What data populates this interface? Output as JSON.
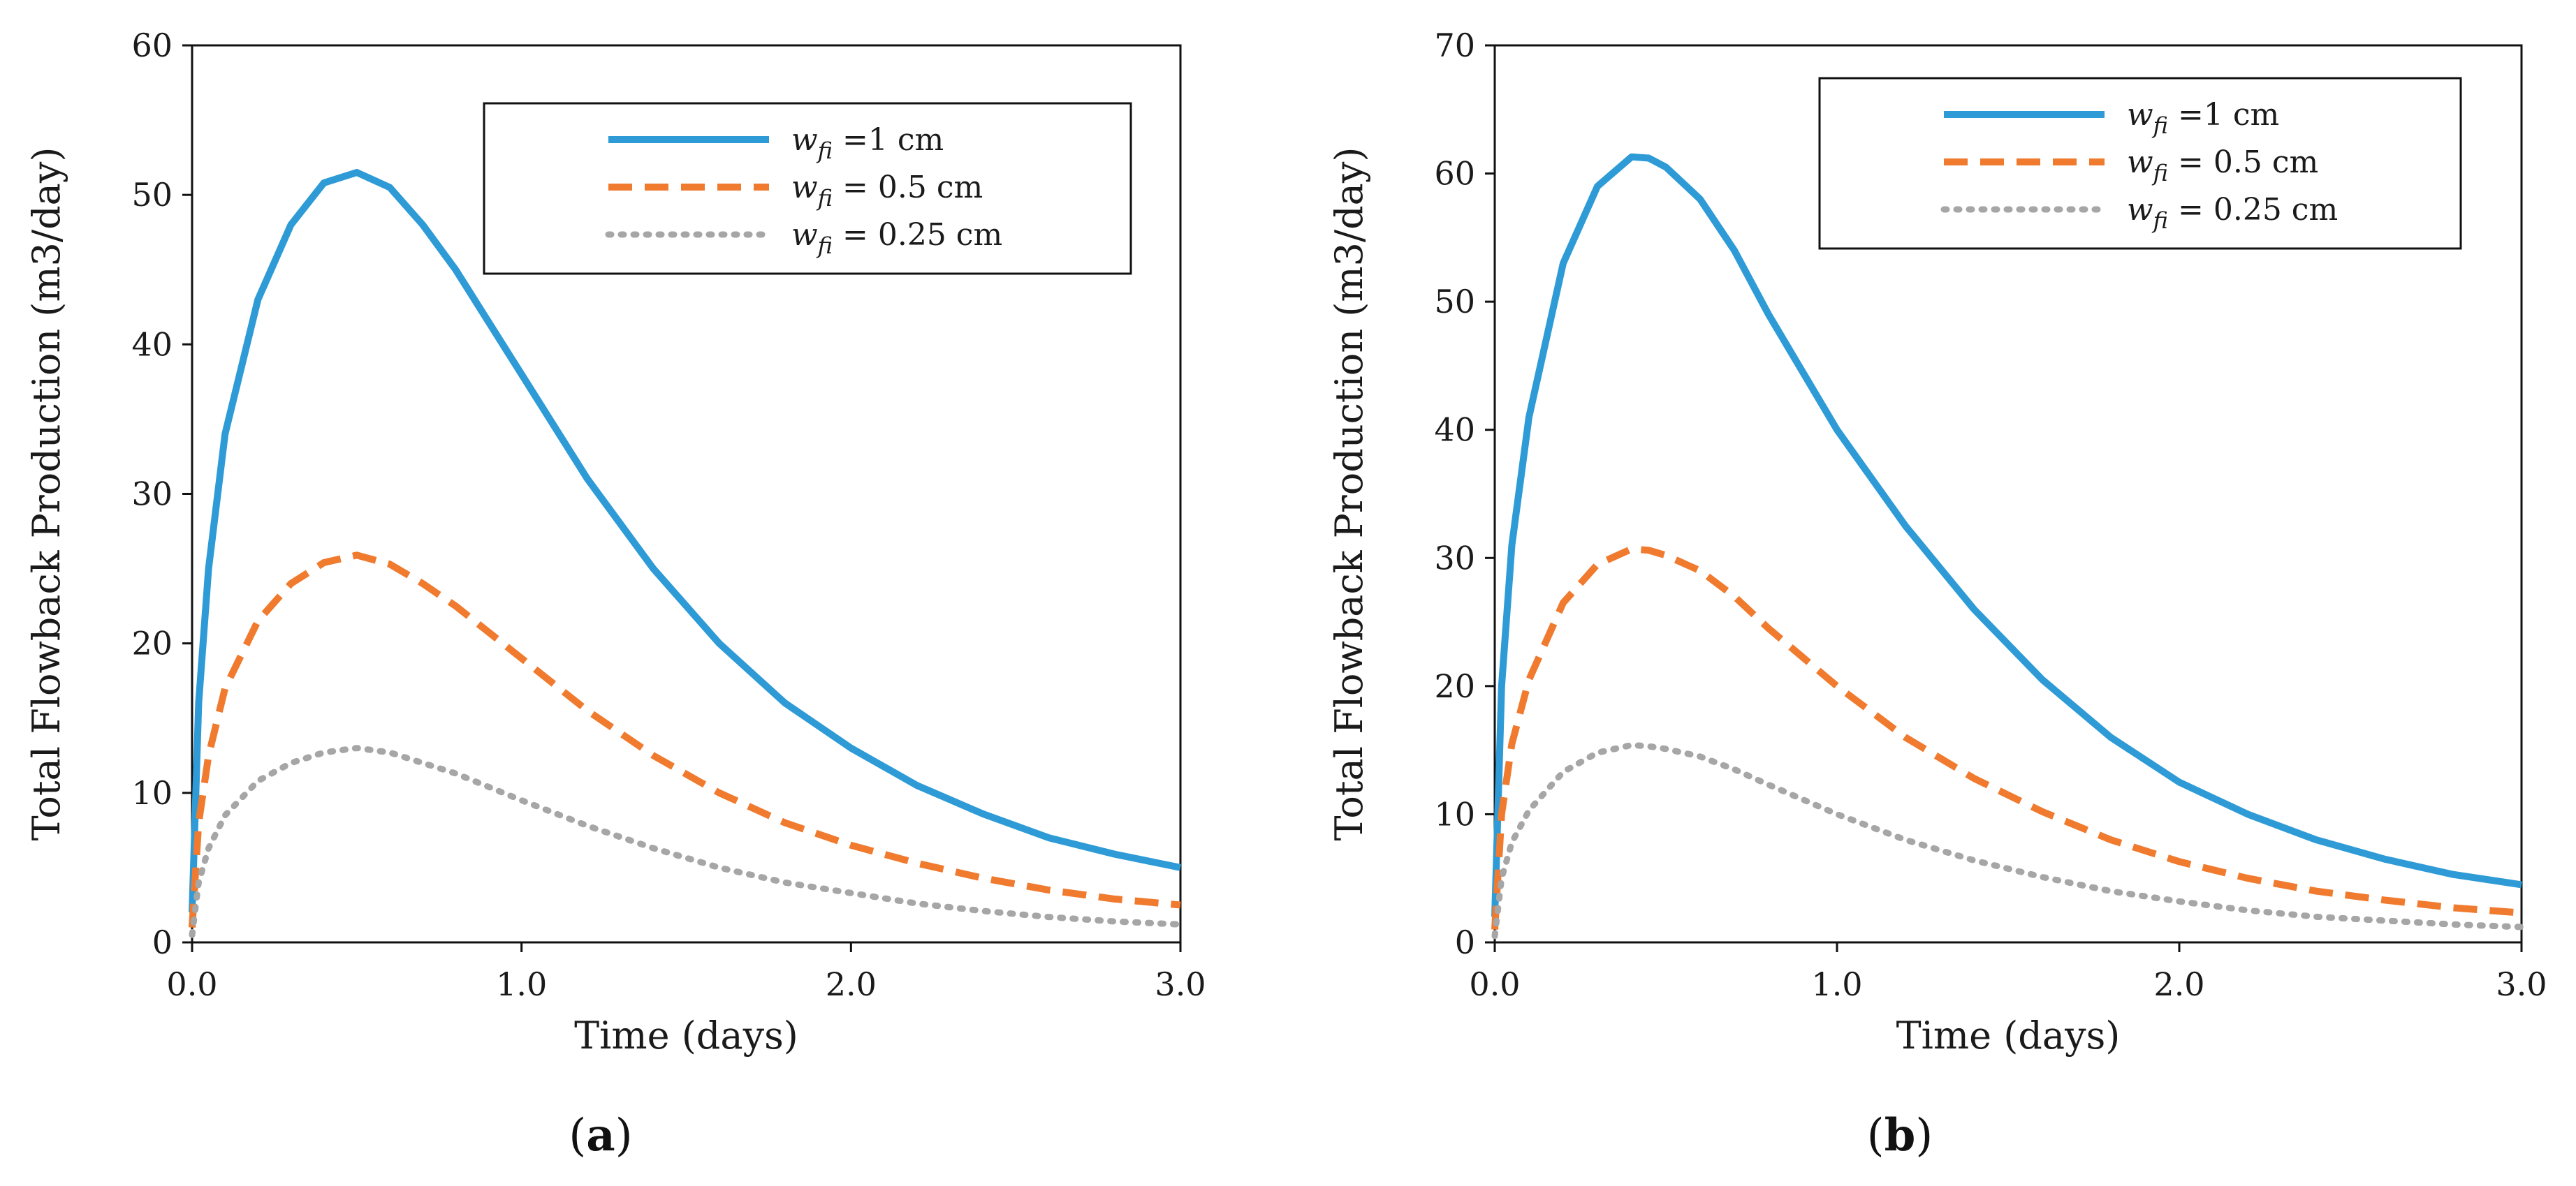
{
  "chart_data": [
    {
      "type": "line",
      "panel_label": "(a)",
      "panel_letter": "a",
      "xlabel": "Time (days)",
      "ylabel": "Total Flowback Production (m3/day)",
      "xlim": [
        0,
        3
      ],
      "ylim": [
        0,
        60
      ],
      "xticks": [
        "0.0",
        "1.0",
        "2.0",
        "3.0"
      ],
      "yticks": [
        "0",
        "10",
        "20",
        "30",
        "40",
        "50",
        "60"
      ],
      "legend_position": "top-right",
      "series": [
        {
          "name": "w_fi =1 cm",
          "var": "w",
          "sub": "fi",
          "rest": " =1 cm",
          "style": "solid",
          "color": "#2e9bd6",
          "x": [
            0,
            0.02,
            0.05,
            0.1,
            0.2,
            0.3,
            0.4,
            0.5,
            0.6,
            0.7,
            0.8,
            1.0,
            1.2,
            1.4,
            1.6,
            1.8,
            2.0,
            2.2,
            2.4,
            2.6,
            2.8,
            3.0
          ],
          "y": [
            2,
            16,
            25,
            34,
            43,
            48,
            50.8,
            51.5,
            50.5,
            48,
            45,
            38,
            31,
            25,
            20,
            16,
            13,
            10.5,
            8.6,
            7,
            5.9,
            5
          ]
        },
        {
          "name": "w_fi = 0.5 cm",
          "var": "w",
          "sub": "fi",
          "rest": " = 0.5 cm",
          "style": "dashed",
          "color": "#f07a2e",
          "x": [
            0,
            0.02,
            0.05,
            0.1,
            0.2,
            0.3,
            0.4,
            0.5,
            0.6,
            0.7,
            0.8,
            1.0,
            1.2,
            1.4,
            1.6,
            1.8,
            2.0,
            2.2,
            2.4,
            2.6,
            2.8,
            3.0
          ],
          "y": [
            1,
            8,
            12.5,
            17,
            21.5,
            24,
            25.4,
            25.9,
            25.3,
            24,
            22.5,
            19,
            15.5,
            12.5,
            10,
            8,
            6.5,
            5.3,
            4.3,
            3.5,
            2.9,
            2.5
          ]
        },
        {
          "name": "w_fi = 0.25 cm",
          "var": "w",
          "sub": "fi",
          "rest": " = 0.25 cm",
          "style": "dotted",
          "color": "#a6a6a6",
          "x": [
            0,
            0.02,
            0.05,
            0.1,
            0.2,
            0.3,
            0.4,
            0.5,
            0.6,
            0.7,
            0.8,
            1.0,
            1.2,
            1.4,
            1.6,
            1.8,
            2.0,
            2.2,
            2.4,
            2.6,
            2.8,
            3.0
          ],
          "y": [
            0.5,
            4,
            6.3,
            8.5,
            10.8,
            12,
            12.7,
            13,
            12.7,
            12,
            11.3,
            9.5,
            7.8,
            6.3,
            5,
            4,
            3.3,
            2.6,
            2.1,
            1.7,
            1.4,
            1.2
          ]
        }
      ]
    },
    {
      "type": "line",
      "panel_label": "(b)",
      "panel_letter": "b",
      "xlabel": "Time (days)",
      "ylabel": "Total Flowback Production (m3/day)",
      "xlim": [
        0,
        3
      ],
      "ylim": [
        0,
        70
      ],
      "xticks": [
        "0.0",
        "1.0",
        "2.0",
        "3.0"
      ],
      "yticks": [
        "0",
        "10",
        "20",
        "30",
        "40",
        "50",
        "60",
        "70"
      ],
      "legend_position": "top-right",
      "series": [
        {
          "name": "w_fi =1 cm",
          "var": "w",
          "sub": "fi",
          "rest": " =1 cm",
          "style": "solid",
          "color": "#2e9bd6",
          "x": [
            0,
            0.02,
            0.05,
            0.1,
            0.2,
            0.3,
            0.4,
            0.45,
            0.5,
            0.6,
            0.7,
            0.8,
            1.0,
            1.2,
            1.4,
            1.6,
            1.8,
            2.0,
            2.2,
            2.4,
            2.6,
            2.8,
            3.0
          ],
          "y": [
            2,
            20,
            31,
            41,
            53,
            59,
            61.3,
            61.2,
            60.5,
            58,
            54,
            49,
            40,
            32.5,
            26,
            20.5,
            16,
            12.5,
            10,
            8,
            6.5,
            5.3,
            4.5
          ]
        },
        {
          "name": "w_fi = 0.5 cm",
          "var": "w",
          "sub": "fi",
          "rest": " = 0.5 cm",
          "style": "dashed",
          "color": "#f07a2e",
          "x": [
            0,
            0.02,
            0.05,
            0.1,
            0.2,
            0.3,
            0.4,
            0.45,
            0.5,
            0.6,
            0.7,
            0.8,
            1.0,
            1.2,
            1.4,
            1.6,
            1.8,
            2.0,
            2.2,
            2.4,
            2.6,
            2.8,
            3.0
          ],
          "y": [
            1,
            10,
            15.5,
            20.5,
            26.5,
            29.5,
            30.7,
            30.6,
            30.2,
            29,
            27,
            24.5,
            20,
            16,
            12.8,
            10.2,
            8,
            6.3,
            5,
            4,
            3.3,
            2.7,
            2.3
          ]
        },
        {
          "name": "w_fi = 0.25 cm",
          "var": "w",
          "sub": "fi",
          "rest": " = 0.25 cm",
          "style": "dotted",
          "color": "#a6a6a6",
          "x": [
            0,
            0.02,
            0.05,
            0.1,
            0.2,
            0.3,
            0.4,
            0.45,
            0.5,
            0.6,
            0.7,
            0.8,
            1.0,
            1.2,
            1.4,
            1.6,
            1.8,
            2.0,
            2.2,
            2.4,
            2.6,
            2.8,
            3.0
          ],
          "y": [
            0.5,
            5,
            7.8,
            10.3,
            13.3,
            14.8,
            15.4,
            15.3,
            15.1,
            14.5,
            13.5,
            12.3,
            10,
            8,
            6.4,
            5.1,
            4,
            3.2,
            2.5,
            2,
            1.7,
            1.4,
            1.2
          ]
        }
      ]
    }
  ]
}
